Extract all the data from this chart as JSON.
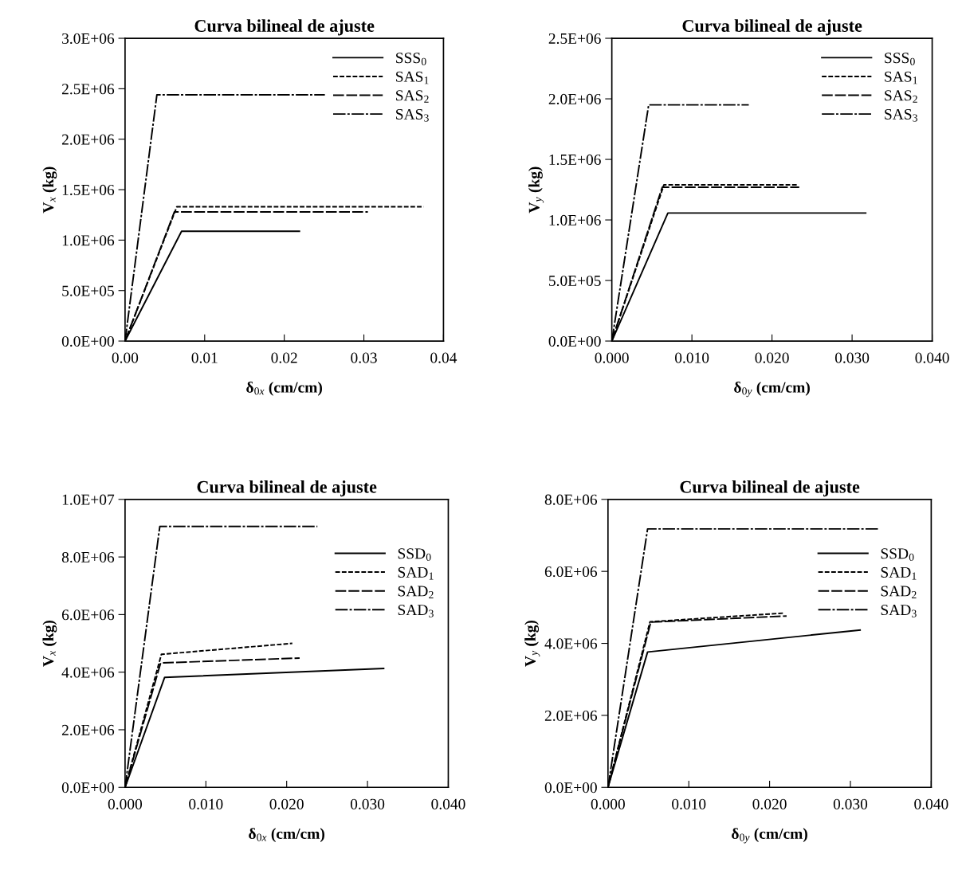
{
  "chart_data": [
    {
      "type": "line",
      "title": "Curva bilineal de ajuste",
      "xlabel": "δ$_{0x}$ (cm/cm)",
      "ylabel": "V$_{x}$ (kg)",
      "legend": "top right",
      "grid": false,
      "xlim": [
        0,
        0.04
      ],
      "xticks": [
        {
          "value": 0,
          "label": "0.00"
        },
        {
          "value": 0.01,
          "label": "0.01"
        },
        {
          "value": 0.02,
          "label": "0.02"
        },
        {
          "value": 0.03,
          "label": "0.03"
        },
        {
          "value": 0.04,
          "label": "0.04"
        }
      ],
      "ylim": [
        0,
        3000000
      ],
      "yticks": [
        {
          "value": 0,
          "label": "0.0E+00"
        },
        {
          "value": 500000,
          "label": "5.0E+05"
        },
        {
          "value": 1000000,
          "label": "1.0E+06"
        },
        {
          "value": 1500000,
          "label": "1.5E+06"
        },
        {
          "value": 2000000,
          "label": "2.0E+06"
        },
        {
          "value": 2500000,
          "label": "2.5E+06"
        },
        {
          "value": 3000000,
          "label": "3.0E+06"
        }
      ],
      "series": [
        {
          "name": "SSS$_{0}$",
          "color": "#000000",
          "line_style": "solid",
          "x": [
            0,
            0.0071,
            0.0219
          ],
          "values": [
            0,
            1088000,
            1088000
          ]
        },
        {
          "name": "SAS$_{1}$",
          "color": "#000000",
          "line_style": "dotted",
          "x": [
            0,
            0.0065,
            0.0375
          ],
          "values": [
            0,
            1330000,
            1330000
          ]
        },
        {
          "name": "SAS$_{2}$",
          "color": "#000000",
          "line_style": "dashed",
          "x": [
            0,
            0.0062,
            0.0305
          ],
          "values": [
            0,
            1280000,
            1280000
          ]
        },
        {
          "name": "SAS$_{3}$",
          "color": "#000000",
          "line_style": "dashdot",
          "x": [
            0,
            0.004,
            0.0251
          ],
          "values": [
            0,
            2440000,
            2440000
          ]
        }
      ]
    },
    {
      "type": "line",
      "title": "Curva bilineal de ajuste",
      "xlabel": "δ$_{0y}$ (cm/cm)",
      "ylabel": "V$_{y}$ (kg)",
      "legend": "top right",
      "grid": false,
      "xlim": [
        0,
        0.04
      ],
      "xticks": [
        {
          "value": 0,
          "label": "0.000"
        },
        {
          "value": 0.01,
          "label": "0.010"
        },
        {
          "value": 0.02,
          "label": "0.020"
        },
        {
          "value": 0.03,
          "label": "0.030"
        },
        {
          "value": 0.04,
          "label": "0.040"
        }
      ],
      "ylim": [
        0,
        2500000
      ],
      "yticks": [
        {
          "value": 0,
          "label": "0.0E+00"
        },
        {
          "value": 500000,
          "label": "5.0E+05"
        },
        {
          "value": 1000000,
          "label": "1.0E+06"
        },
        {
          "value": 1500000,
          "label": "1.5E+06"
        },
        {
          "value": 2000000,
          "label": "2.0E+06"
        },
        {
          "value": 2500000,
          "label": "2.5E+06"
        }
      ],
      "series": [
        {
          "name": "SSS$_{0}$",
          "color": "#000000",
          "line_style": "solid",
          "x": [
            0,
            0.007,
            0.0317
          ],
          "values": [
            0,
            1057000,
            1057000
          ]
        },
        {
          "name": "SAS$_{1}$",
          "color": "#000000",
          "line_style": "dotted",
          "x": [
            0,
            0.0065,
            0.0232
          ],
          "values": [
            0,
            1290000,
            1290000
          ]
        },
        {
          "name": "SAS$_{2}$",
          "color": "#000000",
          "line_style": "dashed",
          "x": [
            0,
            0.0063,
            0.0234
          ],
          "values": [
            0,
            1270000,
            1270000
          ]
        },
        {
          "name": "SAS$_{3}$",
          "color": "#000000",
          "line_style": "dashdot",
          "x": [
            0,
            0.0046,
            0.0171
          ],
          "values": [
            0,
            1950000,
            1950000
          ]
        }
      ]
    },
    {
      "type": "line",
      "title": "Curva bilineal de ajuste",
      "xlabel": "δ$_{0x}$ (cm/cm)",
      "ylabel": "V$_{x}$ (kg)",
      "legend": "right",
      "grid": false,
      "xlim": [
        0,
        0.04
      ],
      "xticks": [
        {
          "value": 0,
          "label": "0.000"
        },
        {
          "value": 0.01,
          "label": "0.010"
        },
        {
          "value": 0.02,
          "label": "0.020"
        },
        {
          "value": 0.03,
          "label": "0.030"
        },
        {
          "value": 0.04,
          "label": "0.040"
        }
      ],
      "ylim": [
        0,
        10000000
      ],
      "yticks": [
        {
          "value": 0,
          "label": "0.0E+00"
        },
        {
          "value": 2000000,
          "label": "2.0E+06"
        },
        {
          "value": 4000000,
          "label": "4.0E+06"
        },
        {
          "value": 6000000,
          "label": "6.0E+06"
        },
        {
          "value": 8000000,
          "label": "8.0E+06"
        },
        {
          "value": 10000000,
          "label": "1.0E+07"
        }
      ],
      "series": [
        {
          "name": "SSD$_{0}$",
          "color": "#000000",
          "line_style": "solid",
          "x": [
            0,
            0.0049,
            0.032
          ],
          "values": [
            0,
            3820000,
            4130000
          ]
        },
        {
          "name": "SAD$_{1}$",
          "color": "#000000",
          "line_style": "dotted",
          "x": [
            0,
            0.0045,
            0.0207
          ],
          "values": [
            0,
            4620000,
            5000000
          ]
        },
        {
          "name": "SAD$_{2}$",
          "color": "#000000",
          "line_style": "dashed",
          "x": [
            0,
            0.0044,
            0.0216
          ],
          "values": [
            0,
            4320000,
            4490000
          ]
        },
        {
          "name": "SAD$_{3}$",
          "color": "#000000",
          "line_style": "dashdot",
          "x": [
            0,
            0.0043,
            0.0238
          ],
          "values": [
            0,
            9060000,
            9060000
          ]
        }
      ]
    },
    {
      "type": "line",
      "title": "Curva bilineal de ajuste",
      "xlabel": "δ$_{0y}$ (cm/cm)",
      "ylabel": "V$_{y}$ (kg)",
      "legend": "right",
      "grid": false,
      "xlim": [
        0,
        0.04
      ],
      "xticks": [
        {
          "value": 0,
          "label": "0.000"
        },
        {
          "value": 0.01,
          "label": "0.010"
        },
        {
          "value": 0.02,
          "label": "0.020"
        },
        {
          "value": 0.03,
          "label": "0.030"
        },
        {
          "value": 0.04,
          "label": "0.040"
        }
      ],
      "ylim": [
        0,
        8000000
      ],
      "yticks": [
        {
          "value": 0,
          "label": "0.0E+00"
        },
        {
          "value": 2000000,
          "label": "2.0E+06"
        },
        {
          "value": 4000000,
          "label": "4.0E+06"
        },
        {
          "value": 6000000,
          "label": "6.0E+06"
        },
        {
          "value": 8000000,
          "label": "8.0E+06"
        }
      ],
      "series": [
        {
          "name": "SSD$_{0}$",
          "color": "#000000",
          "line_style": "solid",
          "x": [
            0,
            0.0049,
            0.0312
          ],
          "values": [
            0,
            3760000,
            4370000
          ]
        },
        {
          "name": "SAD$_{1}$",
          "color": "#000000",
          "line_style": "dotted",
          "x": [
            0,
            0.0052,
            0.0217
          ],
          "values": [
            0,
            4600000,
            4840000
          ]
        },
        {
          "name": "SAD$_{2}$",
          "color": "#000000",
          "line_style": "dashed",
          "x": [
            0,
            0.0053,
            0.0221
          ],
          "values": [
            0,
            4590000,
            4760000
          ]
        },
        {
          "name": "SAD$_{3}$",
          "color": "#000000",
          "line_style": "dashdot",
          "x": [
            0,
            0.0049,
            0.0336
          ],
          "values": [
            0,
            7180000,
            7180000
          ]
        }
      ]
    }
  ]
}
